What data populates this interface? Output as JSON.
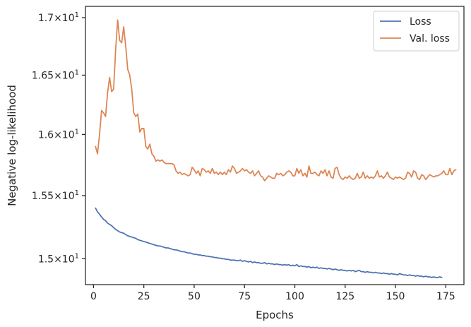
{
  "chart_data": {
    "type": "line",
    "title": "",
    "xlabel": "Epochs",
    "ylabel": "Negative log-likelihood",
    "xlim": [
      -4,
      184
    ],
    "ylim": [
      14.8,
      17.1
    ],
    "y_scale": "log",
    "x_ticks": [
      0,
      25,
      50,
      75,
      100,
      125,
      150,
      175
    ],
    "y_ticks": [
      {
        "value": 15.0,
        "mantissa": "1.5",
        "base": "10",
        "exp": "1"
      },
      {
        "value": 15.5,
        "mantissa": "1.55",
        "base": "10",
        "exp": "1"
      },
      {
        "value": 16.0,
        "mantissa": "1.6",
        "base": "10",
        "exp": "1"
      },
      {
        "value": 16.5,
        "mantissa": "1.65",
        "base": "10",
        "exp": "1"
      },
      {
        "value": 17.0,
        "mantissa": "1.7",
        "base": "10",
        "exp": "1"
      }
    ],
    "grid": false,
    "legend_position": "top-right",
    "series": [
      {
        "name": "Loss",
        "color": "#4c72b0",
        "x_start": 1,
        "values": [
          15.4,
          15.37,
          15.35,
          15.33,
          15.31,
          15.3,
          15.28,
          15.27,
          15.26,
          15.245,
          15.23,
          15.22,
          15.21,
          15.205,
          15.2,
          15.19,
          15.18,
          15.175,
          15.17,
          15.165,
          15.16,
          15.15,
          15.145,
          15.14,
          15.135,
          15.13,
          15.125,
          15.12,
          15.115,
          15.11,
          15.105,
          15.1,
          15.1,
          15.095,
          15.09,
          15.085,
          15.085,
          15.08,
          15.075,
          15.07,
          15.07,
          15.065,
          15.06,
          15.055,
          15.055,
          15.05,
          15.045,
          15.045,
          15.04,
          15.035,
          15.035,
          15.03,
          15.03,
          15.025,
          15.025,
          15.02,
          15.02,
          15.015,
          15.015,
          15.01,
          15.01,
          15.005,
          15.005,
          15.0,
          15.0,
          14.995,
          14.995,
          14.99,
          14.99,
          14.99,
          14.985,
          14.985,
          14.99,
          14.98,
          14.985,
          14.98,
          14.975,
          14.98,
          14.97,
          14.975,
          14.97,
          14.97,
          14.965,
          14.965,
          14.97,
          14.96,
          14.965,
          14.96,
          14.96,
          14.955,
          14.96,
          14.955,
          14.955,
          14.95,
          14.955,
          14.95,
          14.955,
          14.945,
          14.95,
          14.945,
          14.955,
          14.94,
          14.945,
          14.94,
          14.94,
          14.935,
          14.94,
          14.93,
          14.935,
          14.93,
          14.935,
          14.925,
          14.93,
          14.925,
          14.925,
          14.92,
          14.925,
          14.92,
          14.915,
          14.92,
          14.915,
          14.91,
          14.915,
          14.91,
          14.91,
          14.905,
          14.91,
          14.905,
          14.91,
          14.9,
          14.905,
          14.91,
          14.9,
          14.9,
          14.895,
          14.9,
          14.895,
          14.895,
          14.89,
          14.895,
          14.89,
          14.89,
          14.885,
          14.89,
          14.885,
          14.885,
          14.88,
          14.885,
          14.88,
          14.88,
          14.875,
          14.885,
          14.88,
          14.875,
          14.875,
          14.87,
          14.875,
          14.87,
          14.87,
          14.865,
          14.87,
          14.865,
          14.865,
          14.86,
          14.865,
          14.86,
          14.86,
          14.855,
          14.86,
          14.855,
          14.855,
          14.86,
          14.855
        ]
      },
      {
        "name": "Val. loss",
        "color": "#dd8452",
        "x_start": 1,
        "values": [
          15.9,
          15.84,
          16.0,
          16.2,
          16.18,
          16.15,
          16.35,
          16.48,
          16.36,
          16.38,
          16.72,
          16.98,
          16.8,
          16.78,
          16.92,
          16.75,
          16.55,
          16.5,
          16.38,
          16.18,
          16.15,
          16.17,
          16.02,
          16.05,
          16.05,
          15.9,
          15.88,
          15.92,
          15.84,
          15.82,
          15.78,
          15.79,
          15.78,
          15.79,
          15.77,
          15.76,
          15.76,
          15.76,
          15.76,
          15.75,
          15.7,
          15.68,
          15.69,
          15.67,
          15.68,
          15.67,
          15.66,
          15.67,
          15.73,
          15.71,
          15.68,
          15.7,
          15.66,
          15.72,
          15.71,
          15.69,
          15.7,
          15.68,
          15.72,
          15.68,
          15.69,
          15.67,
          15.69,
          15.67,
          15.69,
          15.67,
          15.71,
          15.69,
          15.74,
          15.72,
          15.68,
          15.69,
          15.7,
          15.72,
          15.7,
          15.71,
          15.69,
          15.68,
          15.7,
          15.66,
          15.68,
          15.7,
          15.66,
          15.65,
          15.62,
          15.64,
          15.66,
          15.65,
          15.64,
          15.64,
          15.68,
          15.67,
          15.68,
          15.66,
          15.67,
          15.69,
          15.7,
          15.69,
          15.66,
          15.66,
          15.72,
          15.68,
          15.71,
          15.66,
          15.68,
          15.65,
          15.74,
          15.68,
          15.68,
          15.69,
          15.67,
          15.66,
          15.7,
          15.68,
          15.71,
          15.66,
          15.7,
          15.65,
          15.64,
          15.72,
          15.73,
          15.67,
          15.64,
          15.63,
          15.65,
          15.64,
          15.66,
          15.64,
          15.63,
          15.64,
          15.68,
          15.64,
          15.65,
          15.69,
          15.64,
          15.66,
          15.64,
          15.65,
          15.64,
          15.66,
          15.7,
          15.65,
          15.66,
          15.64,
          15.66,
          15.69,
          15.65,
          15.64,
          15.63,
          15.65,
          15.64,
          15.65,
          15.64,
          15.63,
          15.64,
          15.69,
          15.68,
          15.65,
          15.7,
          15.69,
          15.64,
          15.63,
          15.67,
          15.66,
          15.63,
          15.65,
          15.67,
          15.66,
          15.65,
          15.66,
          15.66,
          15.67,
          15.68,
          15.7,
          15.67,
          15.67,
          15.72,
          15.67,
          15.7,
          15.71
        ]
      }
    ]
  }
}
